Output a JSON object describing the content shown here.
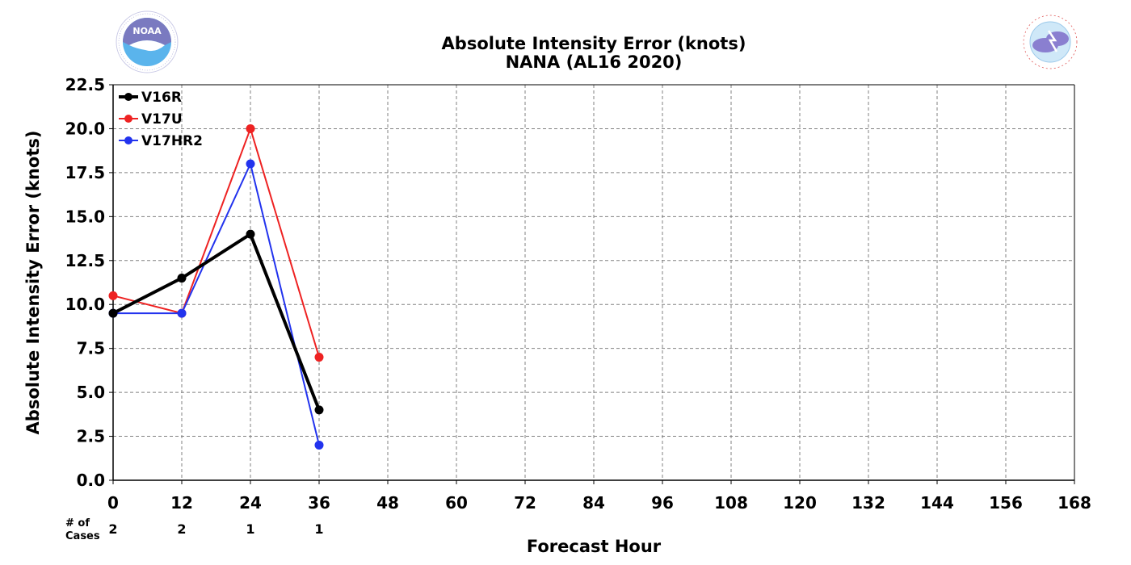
{
  "header": {
    "title": "Absolute Intensity Error (knots)",
    "subtitle": "NANA (AL16 2020)"
  },
  "logos": {
    "left": {
      "name": "noaa-logo",
      "text": "NOAA",
      "ring_text": "NATIONAL OCEANIC AND ATMOSPHERIC ADMINISTRATION · U.S. DEPARTMENT OF COMMERCE"
    },
    "right": {
      "name": "nws-logo",
      "ring_text": "NATIONAL WEATHER SERVICE"
    }
  },
  "cases": {
    "label_line1": "# of",
    "label_line2": "Cases",
    "values": [
      "2",
      "2",
      "1",
      "1"
    ]
  },
  "chart_data": {
    "type": "line",
    "title": "Absolute Intensity Error (knots)",
    "subtitle": "NANA (AL16 2020)",
    "xlabel": "Forecast Hour",
    "ylabel": "Absolute Intensity Error (knots)",
    "xlim": [
      0,
      168
    ],
    "ylim": [
      0,
      22.5
    ],
    "x_ticks": [
      0,
      12,
      24,
      36,
      48,
      60,
      72,
      84,
      96,
      108,
      120,
      132,
      144,
      156,
      168
    ],
    "y_ticks": [
      0.0,
      2.5,
      5.0,
      7.5,
      10.0,
      12.5,
      15.0,
      17.5,
      20.0,
      22.5
    ],
    "y_tick_labels": [
      "0.0",
      "2.5",
      "5.0",
      "7.5",
      "10.0",
      "12.5",
      "15.0",
      "17.5",
      "20.0",
      "22.5"
    ],
    "grid": true,
    "legend_position": "top-left",
    "series": [
      {
        "name": "V16R",
        "color": "#000000",
        "line_width": 4,
        "x": [
          0,
          12,
          24,
          36
        ],
        "y": [
          9.5,
          11.5,
          14.0,
          4.0
        ]
      },
      {
        "name": "V17U",
        "color": "#ee2222",
        "line_width": 2,
        "x": [
          0,
          12,
          24,
          36
        ],
        "y": [
          10.5,
          9.5,
          20.0,
          7.0
        ]
      },
      {
        "name": "V17HR2",
        "color": "#2233ee",
        "line_width": 2,
        "x": [
          0,
          12,
          24,
          36
        ],
        "y": [
          9.5,
          9.5,
          18.0,
          2.0
        ]
      }
    ]
  }
}
